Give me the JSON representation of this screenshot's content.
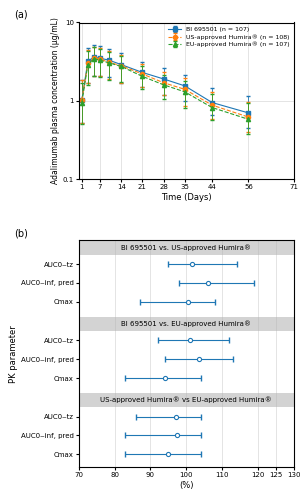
{
  "chart_data": [
    {
      "type": "line",
      "annotation": "(a)",
      "xlabel": "Time (Days)",
      "ylabel": "Adalimumab plasma concentration (μg/mL)",
      "log": "y",
      "xlim": [
        0,
        71
      ],
      "ylim": [
        0.1,
        10
      ],
      "xticks": [
        1,
        7,
        14,
        21,
        28,
        35,
        44,
        56,
        71
      ],
      "yticks": [
        0.1,
        1,
        10
      ],
      "grid": true,
      "legend": "upper right",
      "series": [
        {
          "name": "BI 695501 (n = 107)",
          "marker": "square",
          "line_style": "solid",
          "x": [
            1,
            3,
            5,
            7,
            10,
            14,
            21,
            28,
            35,
            44,
            56
          ],
          "values": [
            1.02,
            3.2,
            3.6,
            3.5,
            3.3,
            2.9,
            2.3,
            1.9,
            1.55,
            0.95,
            0.7
          ],
          "err_low": [
            0.5,
            1.5,
            1.5,
            1.4,
            1.3,
            1.2,
            0.8,
            0.7,
            0.55,
            0.3,
            0.25
          ],
          "err_high": [
            0.8,
            1.5,
            1.5,
            1.5,
            1.3,
            1.2,
            0.8,
            0.7,
            0.6,
            0.5,
            0.45
          ]
        },
        {
          "name": "US-approved Humira® (n = 108)",
          "marker": "circle",
          "line_style": "dashed",
          "x": [
            1,
            3,
            5,
            7,
            10,
            14,
            21,
            28,
            35,
            44,
            56
          ],
          "values": [
            1.02,
            3.0,
            3.5,
            3.4,
            3.1,
            2.8,
            2.2,
            1.7,
            1.4,
            0.88,
            0.62
          ],
          "err_low": [
            0.5,
            1.3,
            1.4,
            1.3,
            1.2,
            1.1,
            0.7,
            0.5,
            0.55,
            0.3,
            0.22
          ],
          "err_high": [
            0.8,
            1.5,
            1.4,
            1.3,
            1.2,
            1.1,
            0.75,
            0.6,
            0.55,
            0.4,
            0.35
          ]
        },
        {
          "name": "EU-approved Humira® (n = 107)",
          "marker": "triangle",
          "line_style": "dashed",
          "x": [
            1,
            3,
            5,
            7,
            10,
            14,
            21,
            28,
            35,
            44,
            56
          ],
          "values": [
            0.95,
            2.9,
            3.45,
            3.3,
            3.05,
            2.75,
            2.05,
            1.6,
            1.3,
            0.82,
            0.58
          ],
          "err_low": [
            0.45,
            1.3,
            1.4,
            1.3,
            1.2,
            1.0,
            0.65,
            0.55,
            0.5,
            0.25,
            0.2
          ],
          "err_high": [
            0.75,
            1.4,
            1.4,
            1.3,
            1.2,
            1.0,
            0.7,
            0.55,
            0.5,
            0.4,
            0.35
          ]
        }
      ]
    },
    {
      "type": "forest",
      "orientation": "horizontal",
      "annotation": "(b)",
      "xlabel": "(%)",
      "ylabel": "PK parameter",
      "xlim": [
        70,
        130
      ],
      "xticks": [
        70,
        80,
        90,
        100,
        110,
        120,
        125,
        130
      ],
      "grid": true,
      "groups": [
        {
          "name": "BI 695501 vs. US-approved Humira®",
          "categories": [
            "AUC0‒tz",
            "AUC0‒inf, pred",
            "Cmax"
          ],
          "values": [
            101.5,
            106.0,
            100.5
          ],
          "lo": [
            95.0,
            98.0,
            87.0
          ],
          "hi": [
            114.0,
            119.0,
            108.0
          ]
        },
        {
          "name": "BI 695501 vs. EU-approved Humira®",
          "categories": [
            "AUC0‒tz",
            "AUC0‒inf, pred",
            "Cmax"
          ],
          "values": [
            101.0,
            103.5,
            94.0
          ],
          "lo": [
            92.0,
            94.0,
            83.0
          ],
          "hi": [
            112.0,
            113.0,
            104.0
          ]
        },
        {
          "name": "US-approved Humira® vs EU-approved Humira®",
          "categories": [
            "AUC0‒tz",
            "AUC0‒inf, pred",
            "Cmax"
          ],
          "values": [
            97.0,
            97.5,
            95.0
          ],
          "lo": [
            86.0,
            83.0,
            83.0
          ],
          "hi": [
            104.0,
            104.0,
            104.0
          ]
        }
      ]
    }
  ]
}
